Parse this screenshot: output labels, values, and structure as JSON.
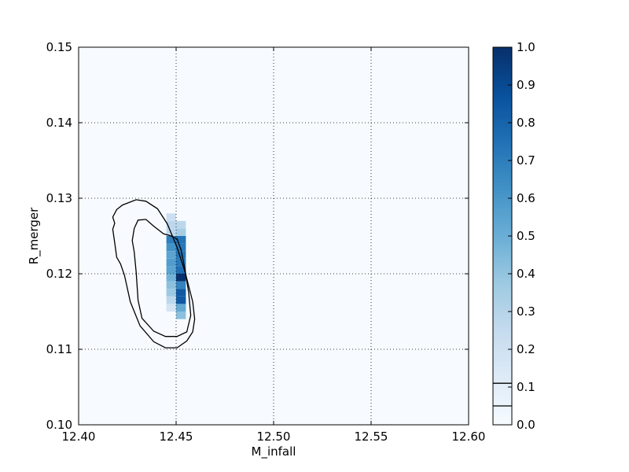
{
  "chart_data": {
    "type": "heatmap",
    "title": "",
    "xlabel": "M_infall",
    "ylabel": "R_merger",
    "xlim": [
      12.4,
      12.6
    ],
    "ylim": [
      0.1,
      0.15
    ],
    "xticks": [
      12.4,
      12.45,
      12.5,
      12.55,
      12.6
    ],
    "xtick_labels": [
      "12.40",
      "12.45",
      "12.50",
      "12.55",
      "12.60"
    ],
    "yticks": [
      0.1,
      0.11,
      0.12,
      0.13,
      0.14,
      0.15
    ],
    "ytick_labels": [
      "0.10",
      "0.11",
      "0.12",
      "0.13",
      "0.14",
      "0.15"
    ],
    "grid": true,
    "colormap": "Blues",
    "colorbar": {
      "range": [
        0.0,
        1.0
      ],
      "ticks": [
        0.0,
        0.1,
        0.2,
        0.3,
        0.4,
        0.5,
        0.6,
        0.7,
        0.8,
        0.9,
        1.0
      ],
      "tick_labels": [
        "0.0",
        "0.1",
        "0.2",
        "0.3",
        "0.4",
        "0.5",
        "0.6",
        "0.7",
        "0.8",
        "0.9",
        "1.0"
      ],
      "contour_levels": [
        0.05,
        0.11
      ]
    },
    "cells": [
      {
        "x": 12.4475,
        "y": 0.1245,
        "v": 0.7
      },
      {
        "x": 12.4475,
        "y": 0.1235,
        "v": 0.62
      },
      {
        "x": 12.4475,
        "y": 0.1225,
        "v": 0.55
      },
      {
        "x": 12.4475,
        "y": 0.1215,
        "v": 0.58
      },
      {
        "x": 12.4475,
        "y": 0.1205,
        "v": 0.55
      },
      {
        "x": 12.4475,
        "y": 0.1195,
        "v": 0.48
      },
      {
        "x": 12.4475,
        "y": 0.1185,
        "v": 0.42
      },
      {
        "x": 12.4475,
        "y": 0.1175,
        "v": 0.38
      },
      {
        "x": 12.4475,
        "y": 0.1165,
        "v": 0.28
      },
      {
        "x": 12.4475,
        "y": 0.1155,
        "v": 0.18
      },
      {
        "x": 12.4475,
        "y": 0.1255,
        "v": 0.28
      },
      {
        "x": 12.4475,
        "y": 0.1265,
        "v": 0.28
      },
      {
        "x": 12.4475,
        "y": 0.1275,
        "v": 0.22
      },
      {
        "x": 12.4525,
        "y": 0.1245,
        "v": 0.74
      },
      {
        "x": 12.4525,
        "y": 0.1235,
        "v": 0.72
      },
      {
        "x": 12.4525,
        "y": 0.1225,
        "v": 0.74
      },
      {
        "x": 12.4525,
        "y": 0.1215,
        "v": 0.72
      },
      {
        "x": 12.4525,
        "y": 0.1205,
        "v": 0.76
      },
      {
        "x": 12.4525,
        "y": 0.1195,
        "v": 1.0
      },
      {
        "x": 12.4525,
        "y": 0.1185,
        "v": 0.68
      },
      {
        "x": 12.4525,
        "y": 0.1175,
        "v": 0.84
      },
      {
        "x": 12.4525,
        "y": 0.1165,
        "v": 0.84
      },
      {
        "x": 12.4525,
        "y": 0.1155,
        "v": 0.52
      },
      {
        "x": 12.4525,
        "y": 0.1145,
        "v": 0.42
      },
      {
        "x": 12.4525,
        "y": 0.1255,
        "v": 0.35
      },
      {
        "x": 12.4525,
        "y": 0.1265,
        "v": 0.28
      }
    ],
    "contours": [
      {
        "level": 0.05,
        "path": [
          [
            12.4175,
            0.1275
          ],
          [
            12.4195,
            0.1285
          ],
          [
            12.4225,
            0.1291
          ],
          [
            12.4295,
            0.1298
          ],
          [
            12.4345,
            0.1296
          ],
          [
            12.4405,
            0.1286
          ],
          [
            12.4455,
            0.1266
          ],
          [
            12.4505,
            0.1235
          ],
          [
            12.4545,
            0.1203
          ],
          [
            12.4585,
            0.1163
          ],
          [
            12.4595,
            0.114
          ],
          [
            12.4585,
            0.1123
          ],
          [
            12.4555,
            0.1111
          ],
          [
            12.4505,
            0.1102
          ],
          [
            12.4445,
            0.1102
          ],
          [
            12.4385,
            0.111
          ],
          [
            12.4315,
            0.1131
          ],
          [
            12.4265,
            0.1163
          ],
          [
            12.4235,
            0.1198
          ],
          [
            12.4215,
            0.1213
          ],
          [
            12.4195,
            0.1222
          ],
          [
            12.4185,
            0.1241
          ],
          [
            12.4175,
            0.1259
          ],
          [
            12.4185,
            0.1267
          ],
          [
            12.4175,
            0.1275
          ]
        ]
      },
      {
        "level": 0.11,
        "path": [
          [
            12.4305,
            0.1271
          ],
          [
            12.4345,
            0.1272
          ],
          [
            12.4385,
            0.1263
          ],
          [
            12.4435,
            0.1253
          ],
          [
            12.4475,
            0.125
          ],
          [
            12.4505,
            0.1246
          ],
          [
            12.4525,
            0.1232
          ],
          [
            12.4545,
            0.1206
          ],
          [
            12.4565,
            0.1174
          ],
          [
            12.4575,
            0.1145
          ],
          [
            12.4555,
            0.1123
          ],
          [
            12.4505,
            0.1117
          ],
          [
            12.4445,
            0.1117
          ],
          [
            12.4385,
            0.1124
          ],
          [
            12.4325,
            0.1141
          ],
          [
            12.4305,
            0.1165
          ],
          [
            12.4295,
            0.1202
          ],
          [
            12.4285,
            0.1229
          ],
          [
            12.4275,
            0.1244
          ],
          [
            12.4285,
            0.126
          ],
          [
            12.4305,
            0.1271
          ]
        ]
      }
    ]
  }
}
